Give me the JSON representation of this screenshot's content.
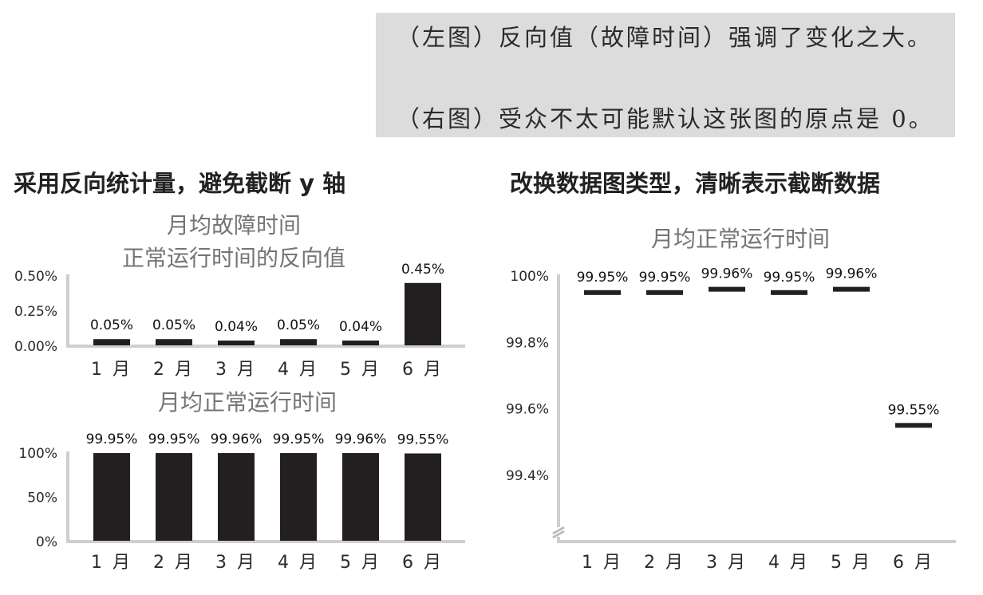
{
  "notes": {
    "left": "（左图）反向值（故障时间）强调了变化之大。",
    "right": "（右图）受众不太可能默认这张图的原点是 0。"
  },
  "headings": {
    "left": "采用反向统计量，避免截断 y 轴",
    "right": "改换数据图类型，清晰表示截断数据"
  },
  "colors": {
    "bar": "#231f20",
    "axis": "#cfcfcf",
    "note_bg": "#dcdcdc",
    "title": "#757575"
  },
  "chart_data": [
    {
      "type": "bar",
      "title": "月均故障时间",
      "subtitle": "正常运行时间的反向值",
      "categories": [
        "1 月",
        "2 月",
        "3 月",
        "4 月",
        "5 月",
        "6 月"
      ],
      "values": [
        0.05,
        0.05,
        0.04,
        0.05,
        0.04,
        0.45
      ],
      "data_labels": [
        "0.05%",
        "0.05%",
        "0.04%",
        "0.05%",
        "0.04%",
        "0.45%"
      ],
      "yticks": [
        0.0,
        0.25,
        0.5
      ],
      "ytick_labels": [
        "0.00%",
        "0.25%",
        "0.50%"
      ],
      "ylim": [
        0,
        0.5
      ]
    },
    {
      "type": "bar",
      "title": "月均正常运行时间",
      "categories": [
        "1 月",
        "2 月",
        "3 月",
        "4 月",
        "5 月",
        "6 月"
      ],
      "values": [
        99.95,
        99.95,
        99.96,
        99.95,
        99.96,
        99.55
      ],
      "data_labels": [
        "99.95%",
        "99.95%",
        "99.96%",
        "99.95%",
        "99.96%",
        "99.55%"
      ],
      "yticks": [
        0,
        50,
        100
      ],
      "ytick_labels": [
        "0%",
        "50%",
        "100%"
      ],
      "ylim": [
        0,
        100
      ]
    },
    {
      "type": "dot",
      "title": "月均正常运行时间",
      "categories": [
        "1 月",
        "2 月",
        "3 月",
        "4 月",
        "5 月",
        "6 月"
      ],
      "values": [
        99.95,
        99.95,
        99.96,
        99.95,
        99.96,
        99.55
      ],
      "data_labels": [
        "99.95%",
        "99.95%",
        "99.96%",
        "99.95%",
        "99.96%",
        "99.55%"
      ],
      "yticks": [
        99.4,
        99.6,
        99.8,
        100
      ],
      "ytick_labels": [
        "99.4%",
        "99.6%",
        "99.8%",
        "100%"
      ],
      "ylim": [
        99.2,
        100
      ],
      "axis_break": true
    }
  ]
}
